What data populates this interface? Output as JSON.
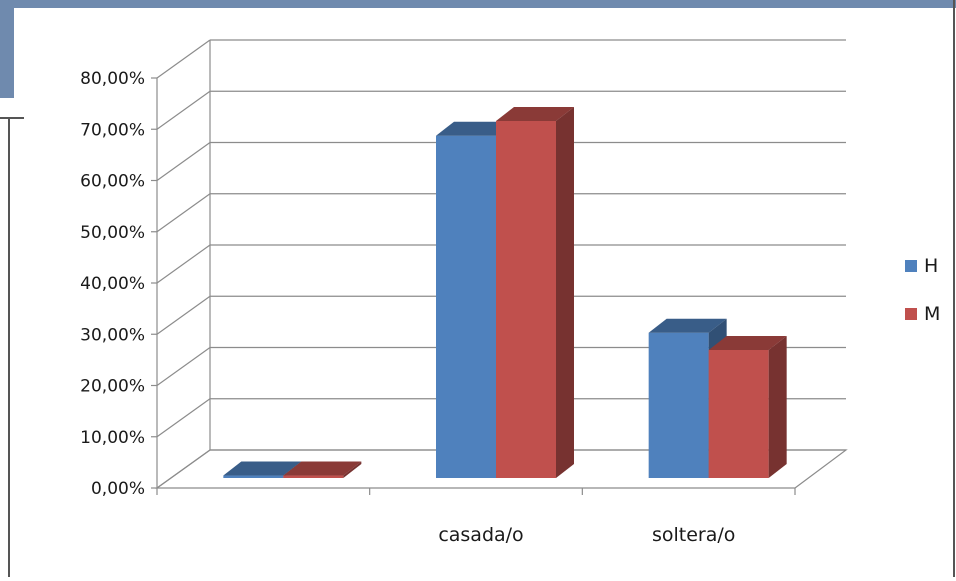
{
  "chart_data": {
    "type": "bar",
    "style": "3d-clustered-column",
    "categories": [
      "",
      "casada/o",
      "soltera/o"
    ],
    "series": [
      {
        "name": "H",
        "values": [
          0.5,
          69.5,
          29.5
        ],
        "color": "#4F81BD"
      },
      {
        "name": "M",
        "values": [
          0.5,
          72.5,
          26.0
        ],
        "color": "#C0504D"
      }
    ],
    "y_ticks": [
      "0,00%",
      "10,00%",
      "20,00%",
      "30,00%",
      "40,00%",
      "50,00%",
      "60,00%",
      "70,00%",
      "80,00%"
    ],
    "ylim": [
      0,
      80
    ],
    "title": "",
    "xlabel": "",
    "ylabel": "",
    "grid": true,
    "legend_position": "right"
  }
}
